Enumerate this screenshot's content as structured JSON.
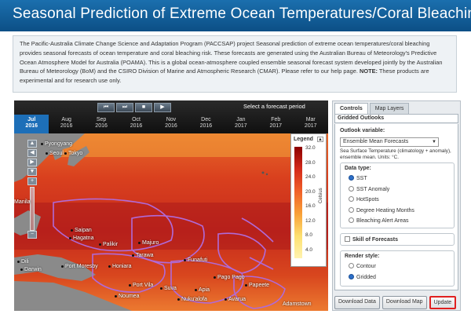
{
  "header": {
    "title": "Seasonal Prediction of Extreme Ocean Temperatures/Coral Bleaching"
  },
  "intro": {
    "paragraph": "The Pacific-Australia Climate Change Science and Adaptation Program (PACCSAP) project Seasonal prediction of extreme ocean temperatures/coral bleaching provides seasonal forecasts of ocean temperature and coral bleaching risk. These forecasts are generated using the Australian Bureau of Meteorology's Predictive Ocean Atmosphere Model for Australia (POAMA). This is a global ocean-atmosphere coupled ensemble seasonal forecast system developed jointly by the Australian Bureau of Meteorology (BoM) and the CSIRO Division of Marine and Atmospheric Research (CMAR). Please refer to our help page.",
    "note_label": "NOTE:",
    "note_text": "These products are experimental and for research use only."
  },
  "timebar": {
    "select_label": "Select a forecast period",
    "controls": [
      "⏮",
      "⏭",
      "■",
      "▶"
    ],
    "months": [
      {
        "month": "Jul",
        "year": "2016",
        "active": true
      },
      {
        "month": "Aug",
        "year": "2016",
        "active": false
      },
      {
        "month": "Sep",
        "year": "2016",
        "active": false
      },
      {
        "month": "Oct",
        "year": "2016",
        "active": false
      },
      {
        "month": "Nov",
        "year": "2016",
        "active": false
      },
      {
        "month": "Dec",
        "year": "2016",
        "active": false
      },
      {
        "month": "Jan",
        "year": "2017",
        "active": false
      },
      {
        "month": "Feb",
        "year": "2017",
        "active": false
      },
      {
        "month": "Mar",
        "year": "2017",
        "active": false
      }
    ]
  },
  "map": {
    "cities": [
      {
        "name": "Pyongyang"
      },
      {
        "name": "Seoul"
      },
      {
        "name": "Tokyo"
      },
      {
        "name": "Saipan"
      },
      {
        "name": "Hagatna"
      },
      {
        "name": "Palikir"
      },
      {
        "name": "Majuro"
      },
      {
        "name": "Tarawa"
      },
      {
        "name": "Port Moresby"
      },
      {
        "name": "Honiara"
      },
      {
        "name": "Funafuti"
      },
      {
        "name": "Port Vila"
      },
      {
        "name": "Suva"
      },
      {
        "name": "Nuku'alofa"
      },
      {
        "name": "Pago Pago"
      },
      {
        "name": "Papeete"
      },
      {
        "name": "Noumea"
      },
      {
        "name": "Apia"
      },
      {
        "name": "Avarua"
      },
      {
        "name": "Manila"
      },
      {
        "name": "Dili"
      },
      {
        "name": "Darwin"
      },
      {
        "name": "Adamstown"
      }
    ],
    "legend": {
      "title": "Legend",
      "unit": "Celsius",
      "ticks": [
        "32.0",
        "28.0",
        "24.0",
        "20.0",
        "16.0",
        "12.0",
        "8.0",
        "4.0"
      ]
    }
  },
  "panel": {
    "tabs": [
      {
        "label": "Controls",
        "active": true
      },
      {
        "label": "Map Layers",
        "active": false
      }
    ],
    "section_title": "Gridded Outlooks",
    "outlook_label": "Outlook variable:",
    "outlook_value": "Ensemble Mean Forecasts",
    "outlook_desc": "Sea Surface Temperature (climatology + anomaly), ensemble mean. Units: °C.",
    "data_type_label": "Data type:",
    "data_types": [
      {
        "label": "SST",
        "selected": true
      },
      {
        "label": "SST Anomaly",
        "selected": false
      },
      {
        "label": "HotSpots",
        "selected": false
      },
      {
        "label": "Degree Heating Months",
        "selected": false
      },
      {
        "label": "Bleaching Alert Areas",
        "selected": false
      }
    ],
    "skill_label": "Skill of Forecasts",
    "render_label": "Render style:",
    "render_styles": [
      {
        "label": "Contour",
        "selected": false
      },
      {
        "label": "Gridded",
        "selected": true
      }
    ],
    "buttons": {
      "download_data": "Download Data",
      "download_map": "Download Map",
      "update": "Update"
    }
  }
}
